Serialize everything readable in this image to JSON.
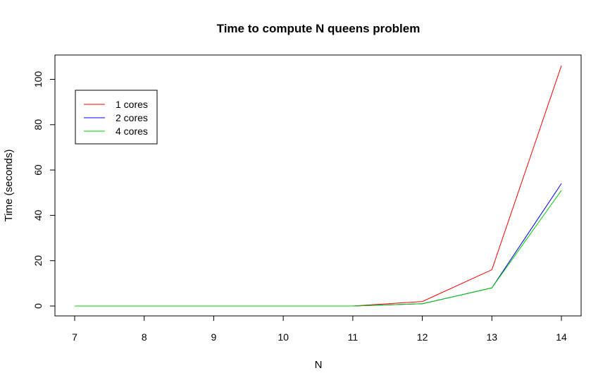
{
  "chart_data": {
    "type": "line",
    "title": "Time to compute N queens problem",
    "xlabel": "N",
    "ylabel": "Time (seconds)",
    "x": [
      7,
      8,
      9,
      10,
      11,
      12,
      13,
      14
    ],
    "x_ticks": [
      "7",
      "8",
      "9",
      "10",
      "11",
      "12",
      "13",
      "14"
    ],
    "y_ticks": [
      "0",
      "20",
      "40",
      "60",
      "80",
      "100"
    ],
    "xlim": [
      7,
      14
    ],
    "ylim": [
      0,
      106
    ],
    "grid": false,
    "legend_position": "top-left",
    "series": [
      {
        "name": "1 cores",
        "color": "#ff0000",
        "values": [
          0,
          0,
          0,
          0,
          0,
          2,
          16,
          106
        ]
      },
      {
        "name": "2 cores",
        "color": "#0000ff",
        "values": [
          0,
          0,
          0,
          0,
          0,
          1,
          8,
          54
        ]
      },
      {
        "name": "4 cores",
        "color": "#00cd00",
        "values": [
          0,
          0,
          0,
          0,
          0,
          1,
          8,
          51
        ]
      }
    ]
  }
}
